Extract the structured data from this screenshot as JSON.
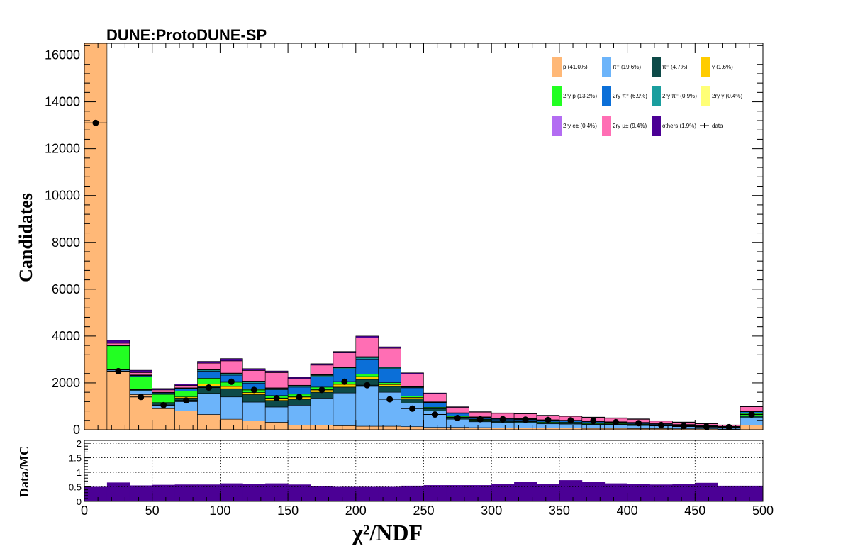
{
  "chart_data": [
    {
      "type": "stacked-histogram",
      "title": "DUNE:ProtoDUNE-SP",
      "xlabel": "χ²/NDF",
      "ylabel": "Candidates",
      "xlim": [
        0,
        500
      ],
      "ylim": [
        0,
        16500
      ],
      "yticks": [
        0,
        2000,
        4000,
        6000,
        8000,
        10000,
        12000,
        14000,
        16000
      ],
      "xticks": [
        0,
        50,
        100,
        150,
        200,
        250,
        300,
        350,
        400,
        450,
        500
      ],
      "bin_edges": [
        0,
        16.67,
        33.33,
        50,
        66.67,
        83.33,
        100,
        116.67,
        133.33,
        150,
        166.67,
        183.33,
        200,
        216.67,
        233.33,
        250,
        266.67,
        283.33,
        300,
        316.67,
        333.33,
        350,
        366.67,
        383.33,
        400,
        416.67,
        433.33,
        450,
        466.67,
        483.33,
        500
      ],
      "legend": {
        "placement": "top-right",
        "columns": 4
      },
      "series": [
        {
          "name": "p (41.0%)",
          "color": "#ffb877",
          "values": [
            16500,
            2500,
            1500,
            900,
            800,
            650,
            450,
            380,
            320,
            200,
            200,
            170,
            150,
            150,
            130,
            100,
            100,
            90,
            80,
            80,
            70,
            70,
            60,
            60,
            50,
            50,
            40,
            40,
            30,
            200
          ]
        },
        {
          "name": "π⁺ (19.6%)",
          "color": "#6cb4fa",
          "values": [
            0,
            50,
            150,
            150,
            400,
            900,
            950,
            800,
            650,
            850,
            1150,
            1400,
            1700,
            1450,
            1000,
            700,
            350,
            250,
            230,
            220,
            180,
            170,
            150,
            140,
            130,
            110,
            90,
            70,
            50,
            300
          ]
        },
        {
          "name": "π⁻ (4.7%)",
          "color": "#0d4a48",
          "values": [
            0,
            20,
            50,
            80,
            150,
            300,
            350,
            320,
            280,
            250,
            250,
            250,
            300,
            250,
            200,
            100,
            70,
            60,
            50,
            50,
            40,
            40,
            30,
            30,
            30,
            20,
            20,
            15,
            10,
            80
          ]
        },
        {
          "name": "γ (1.6%)",
          "color": "#ffcc00",
          "values": [
            0,
            10,
            20,
            30,
            50,
            100,
            100,
            90,
            80,
            100,
            110,
            120,
            120,
            80,
            50,
            20,
            20,
            10,
            10,
            10,
            10,
            10,
            10,
            10,
            10,
            5,
            5,
            5,
            5,
            20
          ]
        },
        {
          "name": "2ry p (13.2%)",
          "color": "#22ff22",
          "values": [
            0,
            1000,
            550,
            350,
            250,
            250,
            180,
            150,
            130,
            120,
            110,
            100,
            100,
            80,
            60,
            40,
            40,
            30,
            30,
            30,
            30,
            30,
            30,
            30,
            25,
            20,
            20,
            15,
            10,
            100
          ]
        },
        {
          "name": "2ry π⁺ (6.9%)",
          "color": "#0b6fd8",
          "values": [
            0,
            20,
            40,
            60,
            100,
            300,
            300,
            250,
            250,
            300,
            450,
            550,
            650,
            600,
            350,
            200,
            120,
            90,
            80,
            70,
            60,
            60,
            60,
            50,
            50,
            40,
            35,
            30,
            25,
            70
          ]
        },
        {
          "name": "2ry π⁻ (0.9%)",
          "color": "#1a9e9e",
          "values": [
            0,
            5,
            10,
            10,
            20,
            50,
            50,
            50,
            40,
            40,
            50,
            50,
            60,
            50,
            30,
            20,
            15,
            10,
            10,
            10,
            10,
            10,
            10,
            10,
            10,
            5,
            5,
            5,
            5,
            10
          ]
        },
        {
          "name": "2ry γ (0.4%)",
          "color": "#ffff77",
          "values": [
            0,
            5,
            10,
            10,
            10,
            20,
            20,
            20,
            20,
            20,
            20,
            20,
            20,
            10,
            10,
            5,
            5,
            5,
            5,
            5,
            5,
            5,
            5,
            5,
            5,
            5,
            5,
            5,
            5,
            10
          ]
        },
        {
          "name": "2ry e± (0.4%)",
          "color": "#b36cf2",
          "values": [
            0,
            5,
            10,
            10,
            10,
            20,
            20,
            20,
            20,
            20,
            20,
            20,
            20,
            10,
            10,
            5,
            5,
            5,
            5,
            5,
            5,
            5,
            5,
            5,
            5,
            5,
            5,
            5,
            5,
            10
          ]
        },
        {
          "name": "2ry μ± (9.4%)",
          "color": "#ff6eb4",
          "values": [
            0,
            80,
            100,
            100,
            100,
            250,
            520,
            450,
            650,
            280,
            400,
            600,
            800,
            800,
            550,
            350,
            230,
            200,
            200,
            200,
            190,
            170,
            160,
            150,
            130,
            110,
            90,
            70,
            50,
            180
          ]
        },
        {
          "name": "others (1.9%)",
          "color": "#4b0095",
          "values": [
            0,
            125,
            100,
            60,
            60,
            80,
            100,
            80,
            70,
            60,
            60,
            60,
            80,
            60,
            40,
            30,
            25,
            20,
            20,
            20,
            20,
            20,
            20,
            20,
            20,
            15,
            15,
            10,
            10,
            20
          ]
        }
      ],
      "data": {
        "name": "data",
        "values": [
          13100,
          2500,
          1400,
          1050,
          1250,
          1800,
          2050,
          1700,
          1350,
          1400,
          1700,
          2050,
          1900,
          1300,
          900,
          650,
          500,
          450,
          450,
          430,
          420,
          400,
          380,
          320,
          280,
          200,
          160,
          140,
          110,
          650
        ]
      }
    },
    {
      "type": "bar",
      "ylabel": "Data/MC",
      "xlabel": "χ²/NDF",
      "xlim": [
        0,
        500
      ],
      "ylim": [
        0,
        2.1
      ],
      "yticks": [
        0,
        0.5,
        1,
        1.5,
        2
      ],
      "yticklabels": [
        "0",
        "0.5",
        "1",
        "1.5",
        "2"
      ],
      "grid": true,
      "color": "#4b0095",
      "values": [
        0.5,
        0.65,
        0.55,
        0.57,
        0.58,
        0.58,
        0.62,
        0.6,
        0.62,
        0.58,
        0.52,
        0.5,
        0.5,
        0.5,
        0.54,
        0.56,
        0.56,
        0.56,
        0.6,
        0.68,
        0.6,
        0.73,
        0.68,
        0.62,
        0.6,
        0.58,
        0.6,
        0.64,
        0.54,
        0.54
      ]
    }
  ]
}
